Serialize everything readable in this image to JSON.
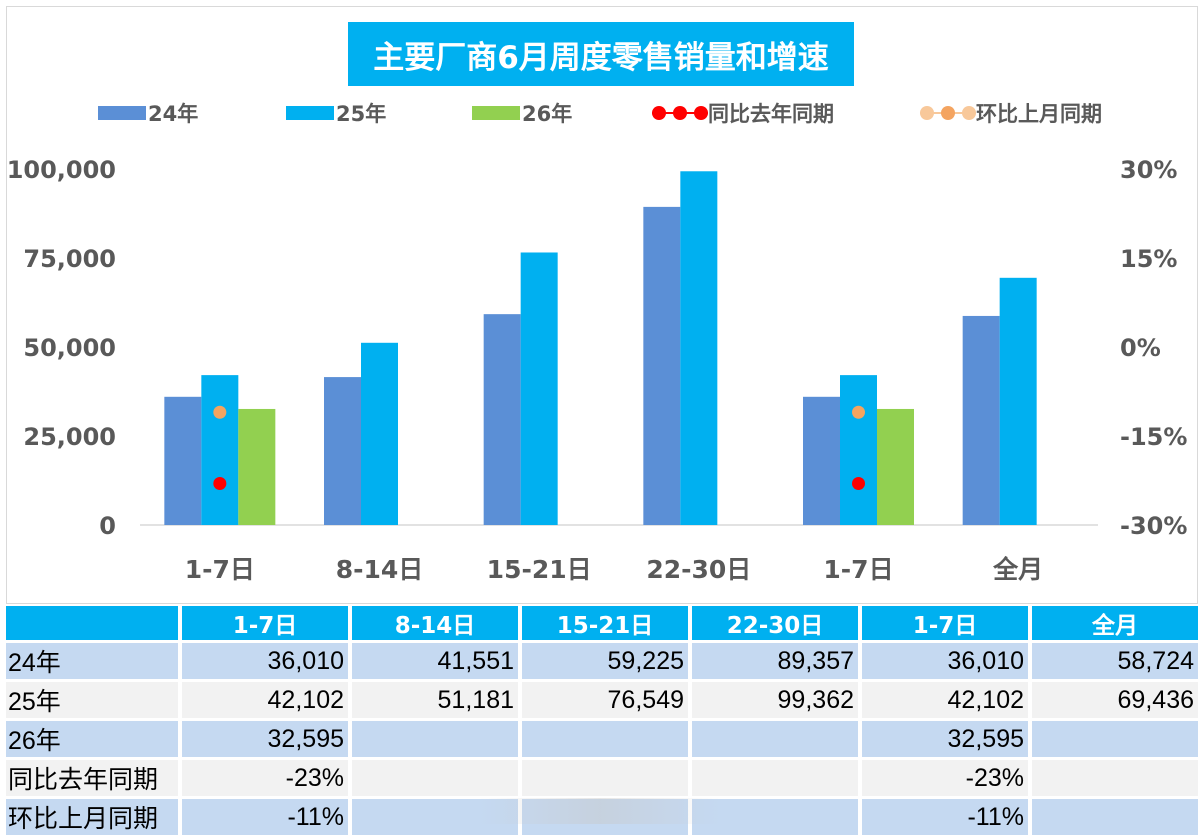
{
  "chart_data": {
    "type": "bar",
    "title": "主要厂商6月周度零售销量和增速",
    "categories": [
      "1-7日",
      "8-14日",
      "15-21日",
      "22-30日",
      "1-7日",
      "全月"
    ],
    "series": [
      {
        "name": "24年",
        "type": "bar",
        "axis": "left",
        "color": "#5b8fd6",
        "values": [
          36010,
          41551,
          59225,
          89357,
          36010,
          58724
        ]
      },
      {
        "name": "25年",
        "type": "bar",
        "axis": "left",
        "color": "#00b0f0",
        "values": [
          42102,
          51181,
          76549,
          99362,
          42102,
          69436
        ]
      },
      {
        "name": "26年",
        "type": "bar",
        "axis": "left",
        "color": "#92d050",
        "values": [
          32595,
          null,
          null,
          null,
          32595,
          null
        ]
      },
      {
        "name": "同比去年同期",
        "type": "line",
        "axis": "right",
        "color": "#ff0000",
        "values": [
          -0.23,
          null,
          null,
          null,
          -0.23,
          null
        ]
      },
      {
        "name": "环比上月同期",
        "type": "line",
        "axis": "right",
        "color": "#f4a460",
        "values": [
          -0.11,
          null,
          null,
          null,
          -0.11,
          null
        ]
      }
    ],
    "y_left": {
      "ticks": [
        "0",
        "25,000",
        "50,000",
        "75,000",
        "100,000"
      ],
      "range": [
        0,
        100000
      ]
    },
    "y_right": {
      "ticks": [
        "-30%",
        "-15%",
        "0%",
        "15%",
        "30%"
      ],
      "range": [
        -0.3,
        0.3
      ]
    },
    "legend_placement": "top",
    "grid": false
  },
  "table": {
    "headers": [
      "",
      "1-7日",
      "8-14日",
      "15-21日",
      "22-30日",
      "1-7日",
      "全月"
    ],
    "rows": [
      {
        "label": "24年",
        "cells": [
          "36,010",
          "41,551",
          "59,225",
          "89,357",
          "36,010",
          "58,724"
        ]
      },
      {
        "label": "25年",
        "cells": [
          "42,102",
          "51,181",
          "76,549",
          "99,362",
          "42,102",
          "69,436"
        ]
      },
      {
        "label": "26年",
        "cells": [
          "32,595",
          "",
          "",
          "",
          "32,595",
          ""
        ]
      },
      {
        "label": "同比去年同期",
        "cells": [
          "-23%",
          "",
          "",
          "",
          "-23%",
          ""
        ]
      },
      {
        "label": "环比上月同期",
        "cells": [
          "-11%",
          "",
          "",
          "",
          "-11%",
          ""
        ]
      }
    ]
  }
}
